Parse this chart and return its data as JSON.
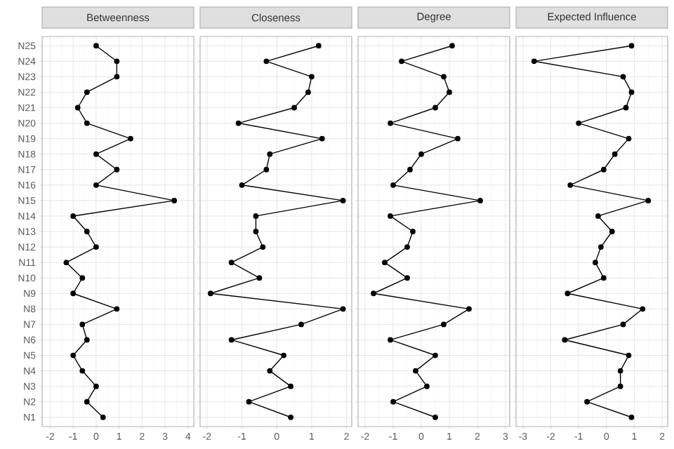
{
  "chart_data": [
    {
      "type": "line",
      "orientation": "horizontal",
      "title": "Betweenness",
      "marker": "circle",
      "line_style": "solid",
      "grid": true,
      "color": "#000000",
      "categories": [
        "N25",
        "N24",
        "N23",
        "N22",
        "N21",
        "N20",
        "N19",
        "N18",
        "N17",
        "N16",
        "N15",
        "N14",
        "N13",
        "N12",
        "N11",
        "N10",
        "N9",
        "N8",
        "N7",
        "N6",
        "N5",
        "N4",
        "N3",
        "N2",
        "N1"
      ],
      "values": [
        0.0,
        0.9,
        0.9,
        -0.4,
        -0.8,
        -0.4,
        1.5,
        0.0,
        0.9,
        0.0,
        3.4,
        -1.0,
        -0.4,
        0.0,
        -1.3,
        -0.6,
        -1.0,
        0.9,
        -0.6,
        -0.4,
        -1.0,
        -0.6,
        0.0,
        -0.4,
        0.3
      ],
      "xlim": [
        -2.35,
        4.25
      ],
      "xticks": [
        -2,
        -1,
        0,
        1,
        2,
        3,
        4
      ]
    },
    {
      "type": "line",
      "orientation": "horizontal",
      "title": "Closeness",
      "marker": "circle",
      "line_style": "solid",
      "grid": true,
      "color": "#000000",
      "tick_labels": "x",
      "categories": [
        null,
        null,
        null,
        null,
        null,
        null,
        null,
        null,
        null,
        null,
        null,
        null,
        null,
        null,
        null,
        null,
        null,
        null,
        null,
        null,
        null,
        null,
        null,
        null,
        null
      ],
      "values": [
        1.2,
        -0.3,
        1.0,
        0.9,
        0.5,
        -1.1,
        1.3,
        -0.2,
        -0.3,
        -1.0,
        1.9,
        -0.6,
        -0.6,
        -0.4,
        -1.3,
        -0.5,
        -1.9,
        1.9,
        0.7,
        -1.3,
        0.2,
        -0.2,
        0.4,
        -0.8,
        0.4
      ],
      "xlim": [
        -2.2,
        2.15
      ],
      "xticks": [
        -2,
        -1,
        0,
        1,
        2
      ]
    },
    {
      "type": "line",
      "orientation": "horizontal",
      "title": "Degree",
      "marker": "circle",
      "line_style": "solid",
      "grid": true,
      "color": "#000000",
      "tick_labels": "x",
      "categories": [
        null,
        null,
        null,
        null,
        null,
        null,
        null,
        null,
        null,
        null,
        null,
        null,
        null,
        null,
        null,
        null,
        null,
        null,
        null,
        null,
        null,
        null,
        null,
        null,
        null
      ],
      "values": [
        1.1,
        -0.7,
        0.8,
        1.0,
        0.5,
        -1.1,
        1.3,
        0.0,
        -0.4,
        -1.0,
        2.1,
        -1.1,
        -0.3,
        -0.5,
        -1.3,
        -0.5,
        -1.7,
        1.7,
        0.8,
        -1.1,
        0.5,
        -0.2,
        0.2,
        -1.0,
        0.5
      ],
      "xlim": [
        -2.25,
        3.15
      ],
      "xticks": [
        -2,
        -1,
        0,
        1,
        2,
        3
      ]
    },
    {
      "type": "line",
      "orientation": "horizontal",
      "title": "Expected Influence",
      "marker": "circle",
      "line_style": "solid",
      "grid": true,
      "color": "#000000",
      "tick_labels": "x",
      "categories": [
        null,
        null,
        null,
        null,
        null,
        null,
        null,
        null,
        null,
        null,
        null,
        null,
        null,
        null,
        null,
        null,
        null,
        null,
        null,
        null,
        null,
        null,
        null,
        null,
        null
      ],
      "values": [
        0.9,
        -2.6,
        0.6,
        0.9,
        0.7,
        -1.0,
        0.8,
        0.3,
        -0.1,
        -1.3,
        1.5,
        -0.3,
        0.2,
        -0.2,
        -0.4,
        -0.1,
        -1.4,
        1.3,
        0.6,
        -1.5,
        0.8,
        0.5,
        0.5,
        -0.7,
        0.9
      ],
      "xlim": [
        -3.25,
        2.2
      ],
      "xticks": [
        -3,
        -2,
        -1,
        0,
        1,
        2
      ]
    }
  ]
}
